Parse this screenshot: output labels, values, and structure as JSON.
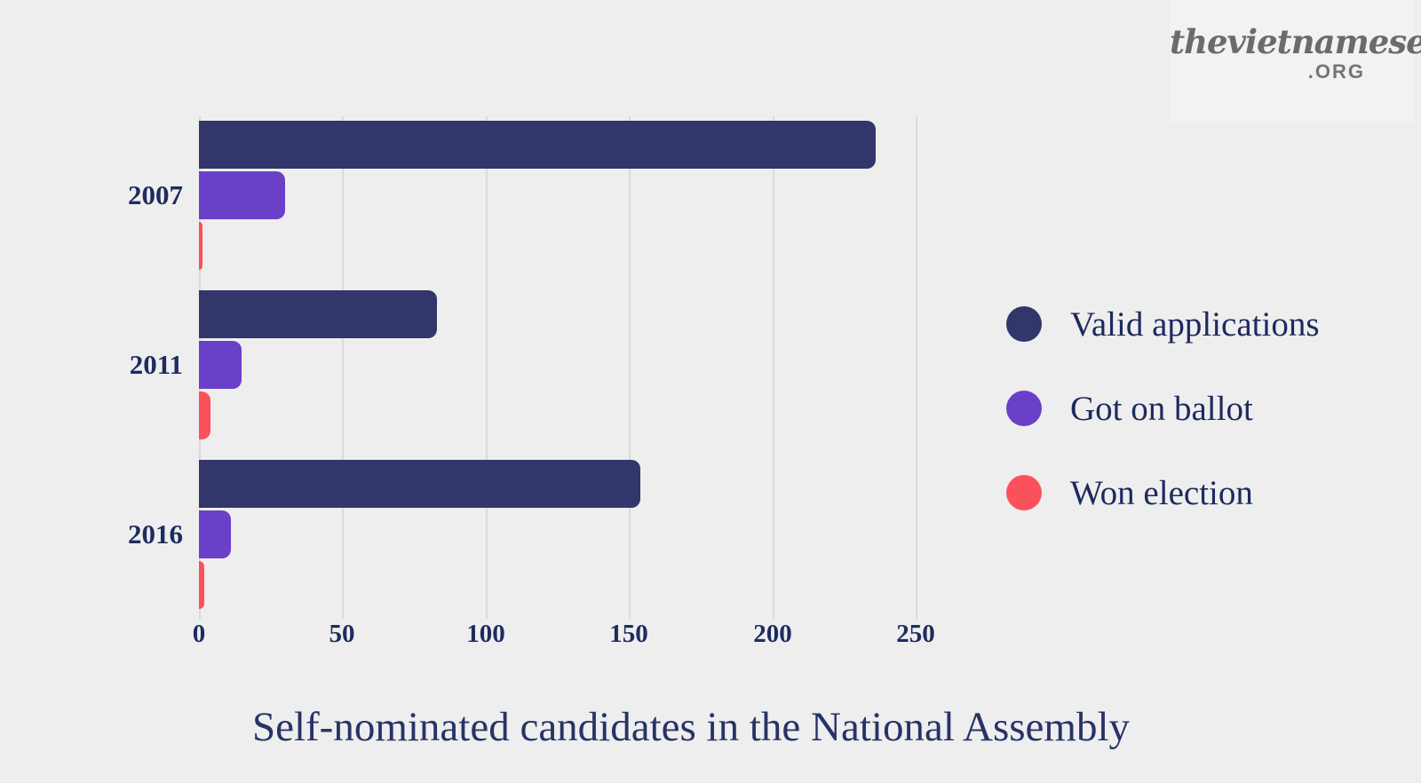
{
  "logo": {
    "wordmark": "thevietnamese",
    "tld": ".ORG"
  },
  "title": "Self-nominated candidates in the National Assembly",
  "legend": [
    {
      "label": "Valid applications",
      "color": "#32366a"
    },
    {
      "label": "Got on ballot",
      "color": "#6b40c8"
    },
    {
      "label": "Won election",
      "color": "#fb515b"
    }
  ],
  "chart_data": {
    "type": "bar",
    "orientation": "horizontal",
    "title": "Self-nominated candidates in the National Assembly",
    "categories": [
      "2007",
      "2011",
      "2016"
    ],
    "series": [
      {
        "name": "Valid applications",
        "color": "#32366a",
        "values": [
          236,
          83,
          154
        ]
      },
      {
        "name": "Got on ballot",
        "color": "#6b40c8",
        "values": [
          30,
          15,
          11
        ]
      },
      {
        "name": "Won election",
        "color": "#fb515b",
        "values": [
          1,
          4,
          2
        ]
      }
    ],
    "xlabel": "",
    "ylabel": "",
    "xlim": [
      0,
      250
    ],
    "xticks": [
      0,
      50,
      100,
      150,
      200,
      250
    ],
    "grid": true,
    "gridline_color": "#d9d9de",
    "legend_position": "right"
  }
}
